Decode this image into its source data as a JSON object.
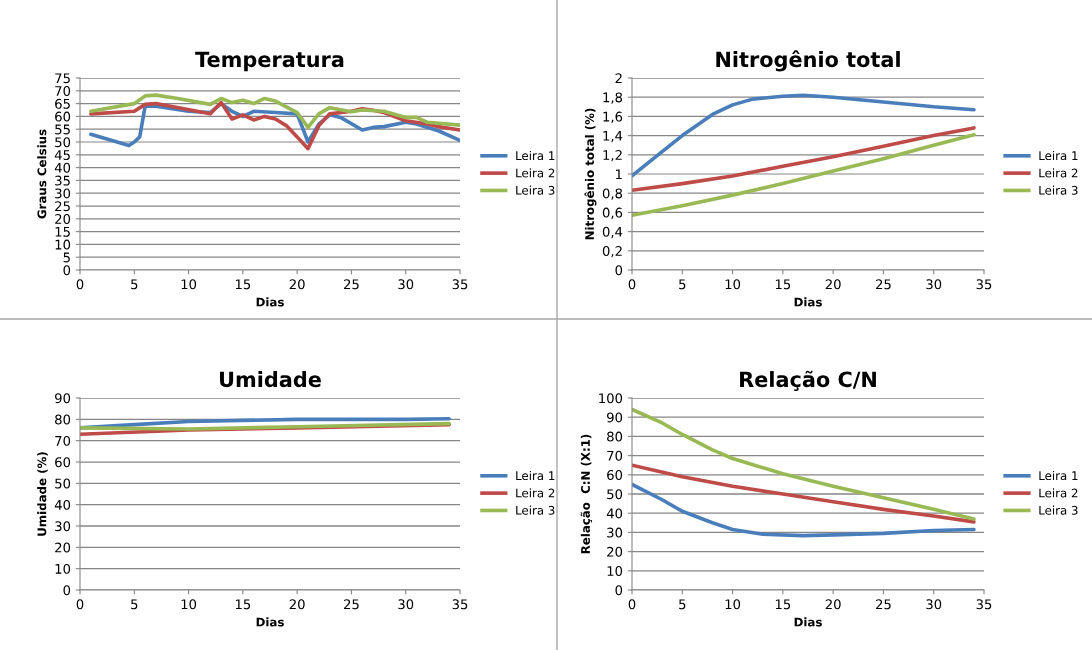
{
  "chart_data": [
    {
      "type": "line",
      "title": "Temperatura",
      "xlabel": "Dias",
      "ylabel": "Graus Celsius",
      "xlim": [
        0,
        35
      ],
      "xticks": [
        0,
        5,
        10,
        15,
        20,
        25,
        30,
        35
      ],
      "ylim": [
        0,
        75
      ],
      "yticks": [
        0,
        5,
        10,
        15,
        20,
        25,
        30,
        35,
        40,
        45,
        50,
        55,
        60,
        65,
        70,
        75
      ],
      "grid": "y",
      "legend": "right",
      "series": [
        {
          "name": "Leira 1",
          "color": "#4a7ebb",
          "x": [
            1,
            4.5,
            5,
            5.5,
            6,
            7,
            10,
            12,
            13,
            14,
            15,
            16,
            18,
            20,
            21,
            22,
            23,
            24,
            26,
            27,
            28,
            30,
            31,
            33,
            35
          ],
          "values": [
            53,
            48.6,
            50,
            52,
            64,
            64,
            62,
            61.5,
            65,
            62,
            60,
            62,
            61.5,
            61,
            50,
            57,
            60.6,
            59.6,
            54.7,
            55.7,
            56,
            57.7,
            57,
            54.4,
            50.6
          ]
        },
        {
          "name": "Leira 2",
          "color": "#be4b48",
          "x": [
            1,
            5,
            6,
            7,
            12,
            13,
            14,
            15,
            16,
            17,
            18,
            19,
            20,
            21,
            22,
            23,
            25,
            26,
            27,
            28,
            30,
            32,
            33,
            35
          ],
          "values": [
            61,
            62,
            64.7,
            65,
            61,
            65.4,
            59,
            60.6,
            58.6,
            60,
            59,
            56.4,
            52,
            47.4,
            56.4,
            61,
            62,
            63,
            62.4,
            61.5,
            58.3,
            57,
            56,
            54.7
          ]
        },
        {
          "name": "Leira 3",
          "color": "#98b954",
          "x": [
            1,
            5,
            6,
            7,
            9,
            12,
            13,
            14,
            15,
            16,
            17,
            18,
            20,
            21,
            22,
            23,
            25,
            26,
            28,
            30,
            31,
            32,
            35
          ],
          "values": [
            62,
            65,
            68,
            68.3,
            67,
            64.7,
            67,
            65.4,
            66.3,
            65,
            67,
            66,
            61.5,
            55.7,
            61,
            63.4,
            61.8,
            62.5,
            62,
            59.6,
            59.6,
            57.7,
            56.6
          ]
        }
      ]
    },
    {
      "type": "line",
      "title": "Nitrogênio total",
      "xlabel": "Dias",
      "ylabel": "Nitrogênio total (%)",
      "xlim": [
        0,
        35
      ],
      "xticks": [
        0,
        5,
        10,
        15,
        20,
        25,
        30,
        35
      ],
      "ylim": [
        0,
        2
      ],
      "yticks": [
        0,
        {
          "value": 0.2,
          "label": "0,2"
        },
        {
          "value": 0.4,
          "label": "0,4"
        },
        {
          "value": 0.6,
          "label": "0,6"
        },
        {
          "value": 0.8,
          "label": "0,8"
        },
        1,
        {
          "value": 1.2,
          "label": "1,2"
        },
        {
          "value": 1.4,
          "label": "1,4"
        },
        {
          "value": 1.6,
          "label": "1,6"
        },
        {
          "value": 1.8,
          "label": "1,8"
        },
        2
      ],
      "grid": "y",
      "legend": "right",
      "series": [
        {
          "name": "Leira 1",
          "color": "#4a7ebb",
          "x": [
            0,
            2,
            5,
            8,
            10,
            12,
            15,
            17,
            20,
            25,
            30,
            34
          ],
          "values": [
            0.98,
            1.15,
            1.4,
            1.62,
            1.72,
            1.78,
            1.81,
            1.82,
            1.8,
            1.75,
            1.7,
            1.67
          ]
        },
        {
          "name": "Leira 2",
          "color": "#be4b48",
          "x": [
            0,
            5,
            10,
            15,
            20,
            25,
            30,
            34
          ],
          "values": [
            0.83,
            0.9,
            0.98,
            1.08,
            1.18,
            1.29,
            1.4,
            1.48
          ]
        },
        {
          "name": "Leira 3",
          "color": "#98b954",
          "x": [
            0,
            5,
            10,
            15,
            20,
            25,
            30,
            34
          ],
          "values": [
            0.57,
            0.67,
            0.78,
            0.9,
            1.03,
            1.16,
            1.3,
            1.41
          ]
        }
      ]
    },
    {
      "type": "line",
      "title": "Umidade",
      "xlabel": "Dias",
      "ylabel": "Umidade (%)",
      "xlim": [
        0,
        35
      ],
      "xticks": [
        0,
        5,
        10,
        15,
        20,
        25,
        30,
        35
      ],
      "ylim": [
        0,
        90
      ],
      "yticks": [
        0,
        10,
        20,
        30,
        40,
        50,
        60,
        70,
        80,
        90
      ],
      "grid": "y",
      "legend": "right",
      "series": [
        {
          "name": "Leira 1",
          "color": "#4a7ebb",
          "x": [
            0,
            5,
            10,
            15,
            20,
            25,
            30,
            34
          ],
          "values": [
            76,
            77.5,
            79,
            79.5,
            80,
            80,
            80,
            80.3
          ]
        },
        {
          "name": "Leira 2",
          "color": "#be4b48",
          "x": [
            0,
            10,
            20,
            34
          ],
          "values": [
            73,
            75,
            76,
            77.5
          ]
        },
        {
          "name": "Leira 3",
          "color": "#98b954",
          "x": [
            0,
            10,
            20,
            34
          ],
          "values": [
            76,
            75.5,
            76.5,
            78
          ]
        }
      ]
    },
    {
      "type": "line",
      "title": "Relação C/N",
      "xlabel": "Dias",
      "ylabel": "Relação  C:N (X:1)",
      "xlim": [
        0,
        35
      ],
      "xticks": [
        0,
        5,
        10,
        15,
        20,
        25,
        30,
        35
      ],
      "ylim": [
        0,
        100
      ],
      "yticks": [
        0,
        10,
        20,
        30,
        40,
        50,
        60,
        70,
        80,
        90,
        100
      ],
      "grid": "y",
      "legend": "right",
      "series": [
        {
          "name": "Leira 1",
          "color": "#4a7ebb",
          "x": [
            0,
            3,
            5,
            8,
            10,
            13,
            17,
            20,
            25,
            30,
            34
          ],
          "values": [
            55,
            47,
            41,
            35,
            31.5,
            29,
            28.3,
            28.7,
            29.5,
            31,
            31.5
          ]
        },
        {
          "name": "Leira 2",
          "color": "#be4b48",
          "x": [
            0,
            5,
            10,
            15,
            20,
            25,
            30,
            34
          ],
          "values": [
            65,
            59,
            54,
            50,
            46,
            42,
            38.5,
            35.5
          ]
        },
        {
          "name": "Leira 3",
          "color": "#98b954",
          "x": [
            0,
            3,
            5,
            8,
            10,
            15,
            20,
            25,
            30,
            34
          ],
          "values": [
            94,
            87,
            81,
            73,
            68.5,
            60.5,
            54,
            48,
            42,
            37
          ]
        }
      ]
    }
  ]
}
